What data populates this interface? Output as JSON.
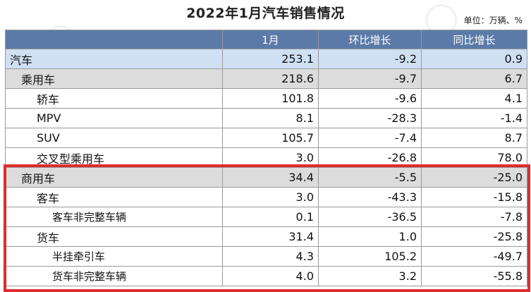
{
  "title": "2022年1月汽车销售情况",
  "unit": "单位：万辆、%",
  "columns": [
    "",
    "1月",
    "环比增长",
    "同比增长"
  ],
  "rows": [
    {
      "name": "汽车",
      "jan": "253.1",
      "mom": "-9.2",
      "yoy": "0.9"
    },
    {
      "name": "乘用车",
      "jan": "218.6",
      "mom": "-9.7",
      "yoy": "6.7"
    },
    {
      "name": "轿车",
      "jan": "101.8",
      "mom": "-9.6",
      "yoy": "4.1"
    },
    {
      "name": "MPV",
      "jan": "8.1",
      "mom": "-28.3",
      "yoy": "-1.4"
    },
    {
      "name": "SUV",
      "jan": "105.7",
      "mom": "-7.4",
      "yoy": "8.7"
    },
    {
      "name": "交叉型乘用车",
      "jan": "3.0",
      "mom": "-26.8",
      "yoy": "78.0"
    },
    {
      "name": "商用车",
      "jan": "34.4",
      "mom": "-5.5",
      "yoy": "-25.0"
    },
    {
      "name": "客车",
      "jan": "3.0",
      "mom": "-43.3",
      "yoy": "-15.8"
    },
    {
      "name": "客车非完整车辆",
      "jan": "0.1",
      "mom": "-36.5",
      "yoy": "-7.8"
    },
    {
      "name": "货车",
      "jan": "31.4",
      "mom": "1.0",
      "yoy": "-25.8"
    },
    {
      "name": "半挂牵引车",
      "jan": "4.3",
      "mom": "105.2",
      "yoy": "-49.7"
    },
    {
      "name": "货车非完整车辆",
      "jan": "4.0",
      "mom": "3.2",
      "yoy": "-55.8"
    }
  ],
  "colors": {
    "header_bg": "#5b7aa8",
    "total_row_bg": "#cfe0f3",
    "category_row_bg": "#dcdcdc",
    "highlight_border": "#e02b2b"
  }
}
